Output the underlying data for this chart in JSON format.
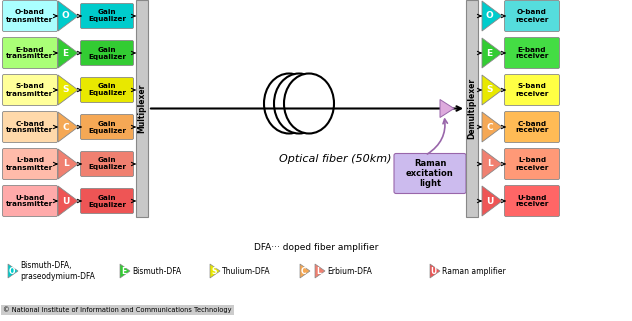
{
  "bands": [
    "O",
    "E",
    "S",
    "C",
    "L",
    "U"
  ],
  "band_colors": [
    "#00cccc",
    "#33cc33",
    "#e8e800",
    "#f5a855",
    "#f08070",
    "#ee5555"
  ],
  "band_colors_light": [
    "#aaffff",
    "#aaff77",
    "#ffff99",
    "#ffd9aa",
    "#ffbbaa",
    "#ffaaaa"
  ],
  "gain_eq_colors": [
    "#00cccc",
    "#33cc33",
    "#e8e800",
    "#f5a855",
    "#f08070",
    "#ee5555"
  ],
  "recv_colors": [
    "#55dddd",
    "#44dd44",
    "#ffff44",
    "#ffbb55",
    "#ff9977",
    "#ff6666"
  ],
  "mux_color": "#c8c8c8",
  "background": "#ffffff",
  "title": "Optical fiber (50km)",
  "dfa_text": "DFA··· doped fiber amplifier",
  "copyright": "© National Institute of Information and Communications Technology",
  "raman_excitation_text": "Raman\nexcitation\nlight",
  "legend": [
    {
      "sym": "O",
      "color": "#00cccc",
      "text": "Bismuth-DFA,\npraseodymium-DFA"
    },
    {
      "sym": "E",
      "color": "#33cc33",
      "text": "Bismuth-DFA"
    },
    {
      "sym": "S",
      "color": "#e8e800",
      "text": "Thulium-DFA"
    },
    {
      "sym": "C",
      "color": "#f5a855",
      "text": ""
    },
    {
      "sym": "L",
      "color": "#f08070",
      "text": "Erbium-DFA"
    },
    {
      "sym": "U",
      "color": "#ee5555",
      "text": "Raman amplifier"
    }
  ]
}
